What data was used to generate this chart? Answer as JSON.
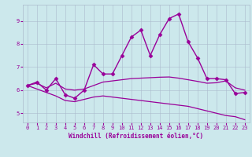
{
  "background_color": "#cce8ec",
  "line_color": "#990099",
  "grid_color": "#aabbcc",
  "xlabel": "Windchill (Refroidissement éolien,°C)",
  "xlim": [
    -0.5,
    23.5
  ],
  "ylim": [
    4.6,
    9.7
  ],
  "yticks": [
    5,
    6,
    7,
    8,
    9
  ],
  "xticks": [
    0,
    1,
    2,
    3,
    4,
    5,
    6,
    7,
    8,
    9,
    10,
    11,
    12,
    13,
    14,
    15,
    16,
    17,
    18,
    19,
    20,
    21,
    22,
    23
  ],
  "series": [
    {
      "x": [
        0,
        1,
        2,
        3,
        4,
        5,
        6,
        7,
        8,
        9,
        10,
        11,
        12,
        13,
        14,
        15,
        16,
        17,
        18,
        19,
        20,
        21,
        22,
        23
      ],
      "y": [
        6.2,
        6.35,
        6.0,
        6.5,
        5.8,
        5.65,
        6.0,
        7.1,
        6.7,
        6.7,
        7.5,
        8.3,
        8.6,
        7.5,
        8.4,
        9.1,
        9.3,
        8.1,
        7.4,
        6.5,
        6.5,
        6.45,
        5.85,
        5.9
      ],
      "marker": "D",
      "markersize": 2.5,
      "linewidth": 1.0
    },
    {
      "x": [
        0,
        1,
        2,
        3,
        4,
        5,
        6,
        7,
        8,
        9,
        10,
        11,
        12,
        13,
        14,
        15,
        16,
        17,
        18,
        19,
        20,
        21,
        22,
        23
      ],
      "y": [
        6.2,
        6.3,
        6.1,
        6.3,
        6.05,
        6.0,
        6.05,
        6.2,
        6.35,
        6.4,
        6.45,
        6.5,
        6.52,
        6.54,
        6.56,
        6.57,
        6.52,
        6.45,
        6.38,
        6.3,
        6.32,
        6.4,
        6.1,
        6.0
      ],
      "marker": null,
      "linewidth": 0.9
    },
    {
      "x": [
        0,
        1,
        2,
        3,
        4,
        5,
        6,
        7,
        8,
        9,
        10,
        11,
        12,
        13,
        14,
        15,
        16,
        17,
        18,
        19,
        20,
        21,
        22,
        23
      ],
      "y": [
        6.2,
        6.05,
        5.9,
        5.75,
        5.55,
        5.5,
        5.6,
        5.7,
        5.75,
        5.7,
        5.65,
        5.6,
        5.55,
        5.5,
        5.45,
        5.4,
        5.35,
        5.3,
        5.2,
        5.1,
        5.0,
        4.9,
        4.85,
        4.72
      ],
      "marker": null,
      "linewidth": 0.9
    }
  ]
}
